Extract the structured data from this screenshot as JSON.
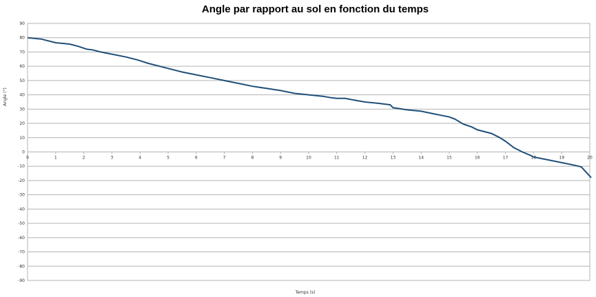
{
  "chart_data": {
    "type": "line",
    "title": "Angle par rapport au sol en fonction du temps",
    "xlabel": "Temps (s)",
    "ylabel": "Angle (°)",
    "xlim": [
      0,
      20
    ],
    "ylim": [
      -90,
      90
    ],
    "x_ticks": [
      0,
      1,
      2,
      3,
      4,
      5,
      6,
      7,
      8,
      9,
      10,
      11,
      12,
      13,
      14,
      15,
      16,
      17,
      18,
      19,
      20
    ],
    "y_ticks": [
      90,
      80,
      70,
      60,
      50,
      40,
      30,
      20,
      10,
      0,
      -10,
      -20,
      -30,
      -40,
      -50,
      -60,
      -70,
      -80,
      -90
    ],
    "grid": true,
    "legend": "none",
    "series": [
      {
        "color": "#1f4e79",
        "points": [
          [
            0,
            80
          ],
          [
            0.5,
            79
          ],
          [
            1,
            76.5
          ],
          [
            1.5,
            75.5
          ],
          [
            1.8,
            74
          ],
          [
            2.1,
            72
          ],
          [
            2.3,
            71.5
          ],
          [
            2.6,
            70
          ],
          [
            3,
            68.5
          ],
          [
            3.5,
            66.5
          ],
          [
            3.9,
            64.5
          ],
          [
            4.3,
            62
          ],
          [
            5,
            58.5
          ],
          [
            5.5,
            56
          ],
          [
            6,
            54
          ],
          [
            6.5,
            52
          ],
          [
            7,
            50
          ],
          [
            7.5,
            48
          ],
          [
            8,
            46
          ],
          [
            8.5,
            44.5
          ],
          [
            9,
            43
          ],
          [
            9.5,
            41
          ],
          [
            10,
            40
          ],
          [
            10.5,
            39
          ],
          [
            10.8,
            38
          ],
          [
            11,
            37.5
          ],
          [
            11.3,
            37.5
          ],
          [
            11.7,
            36
          ],
          [
            12,
            35
          ],
          [
            12.5,
            34
          ],
          [
            12.9,
            33
          ],
          [
            13,
            31
          ],
          [
            13.5,
            29.5
          ],
          [
            14,
            28.5
          ],
          [
            14.5,
            26.5
          ],
          [
            15,
            24.5
          ],
          [
            15.2,
            23
          ],
          [
            15.5,
            19.5
          ],
          [
            15.8,
            17.5
          ],
          [
            16,
            15.5
          ],
          [
            16.2,
            14.5
          ],
          [
            16.5,
            13
          ],
          [
            16.8,
            10
          ],
          [
            17,
            7.5
          ],
          [
            17.3,
            3
          ],
          [
            17.6,
            0
          ],
          [
            17.9,
            -2.5
          ],
          [
            18,
            -3.5
          ],
          [
            18.5,
            -5.5
          ],
          [
            19,
            -7.5
          ],
          [
            19.5,
            -9.5
          ],
          [
            19.7,
            -10.5
          ],
          [
            20,
            -17
          ],
          [
            20.05,
            -18
          ]
        ]
      }
    ]
  }
}
